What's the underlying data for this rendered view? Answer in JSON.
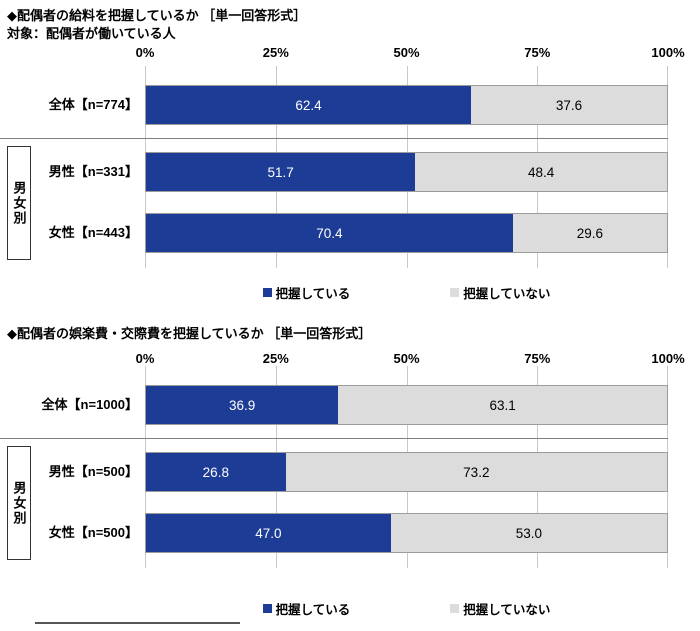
{
  "colors": {
    "series_yes": "#1c3c96",
    "series_no": "#dcdcdc",
    "gridline": "#c9c9c9",
    "value_text_on_yes": "#ffffff",
    "value_text_on_no": "#000000"
  },
  "charts": [
    {
      "title": "◆配偶者の給料を把握しているか ［単一回答形式］",
      "subtitle": "対象：配偶者が働いている人",
      "ticks": [
        "0%",
        "25%",
        "50%",
        "75%",
        "100%"
      ],
      "group_label": "男女別",
      "legend": {
        "yes": "把握している",
        "no": "把握していない"
      },
      "rows": [
        {
          "label": "全体【n=774】",
          "yes": "62.4",
          "no": "37.6"
        },
        {
          "label": "男性【n=331】",
          "yes": "51.7",
          "no": "48.4"
        },
        {
          "label": "女性【n=443】",
          "yes": "70.4",
          "no": "29.6"
        }
      ]
    },
    {
      "title": "◆配偶者の娯楽費・交際費を把握しているか ［単一回答形式］",
      "subtitle": "",
      "ticks": [
        "0%",
        "25%",
        "50%",
        "75%",
        "100%"
      ],
      "group_label": "男女別",
      "legend": {
        "yes": "把握している",
        "no": "把握していない"
      },
      "rows": [
        {
          "label": "全体【n=1000】",
          "yes": "36.9",
          "no": "63.1"
        },
        {
          "label": "男性【n=500】",
          "yes": "26.8",
          "no": "73.2"
        },
        {
          "label": "女性【n=500】",
          "yes": "47.0",
          "no": "53.0"
        }
      ]
    }
  ],
  "chart_data": [
    {
      "type": "bar",
      "orientation": "horizontal",
      "stacked": true,
      "title": "◆配偶者の給料を把握しているか ［単一回答形式］",
      "subtitle": "対象：配偶者が働いている人",
      "categories": [
        "全体【n=774】",
        "男性【n=331】",
        "女性【n=443】"
      ],
      "row_group_label": "男女別",
      "series": [
        {
          "name": "把握している",
          "values": [
            62.4,
            51.7,
            70.4
          ],
          "color": "#1c3c96"
        },
        {
          "name": "把握していない",
          "values": [
            37.6,
            48.4,
            29.6
          ],
          "color": "#dcdcdc"
        }
      ],
      "xlim": [
        0,
        100
      ],
      "x_ticks": [
        "0%",
        "25%",
        "50%",
        "75%",
        "100%"
      ],
      "unit": "%",
      "grid": true,
      "legend_position": "bottom"
    },
    {
      "type": "bar",
      "orientation": "horizontal",
      "stacked": true,
      "title": "◆配偶者の娯楽費・交際費を把握しているか ［単一回答形式］",
      "subtitle": "",
      "categories": [
        "全体【n=1000】",
        "男性【n=500】",
        "女性【n=500】"
      ],
      "row_group_label": "男女別",
      "series": [
        {
          "name": "把握している",
          "values": [
            36.9,
            26.8,
            47.0
          ],
          "color": "#1c3c96"
        },
        {
          "name": "把握していない",
          "values": [
            63.1,
            73.2,
            53.0
          ],
          "color": "#dcdcdc"
        }
      ],
      "xlim": [
        0,
        100
      ],
      "x_ticks": [
        "0%",
        "25%",
        "50%",
        "75%",
        "100%"
      ],
      "unit": "%",
      "grid": true,
      "legend_position": "bottom"
    }
  ]
}
